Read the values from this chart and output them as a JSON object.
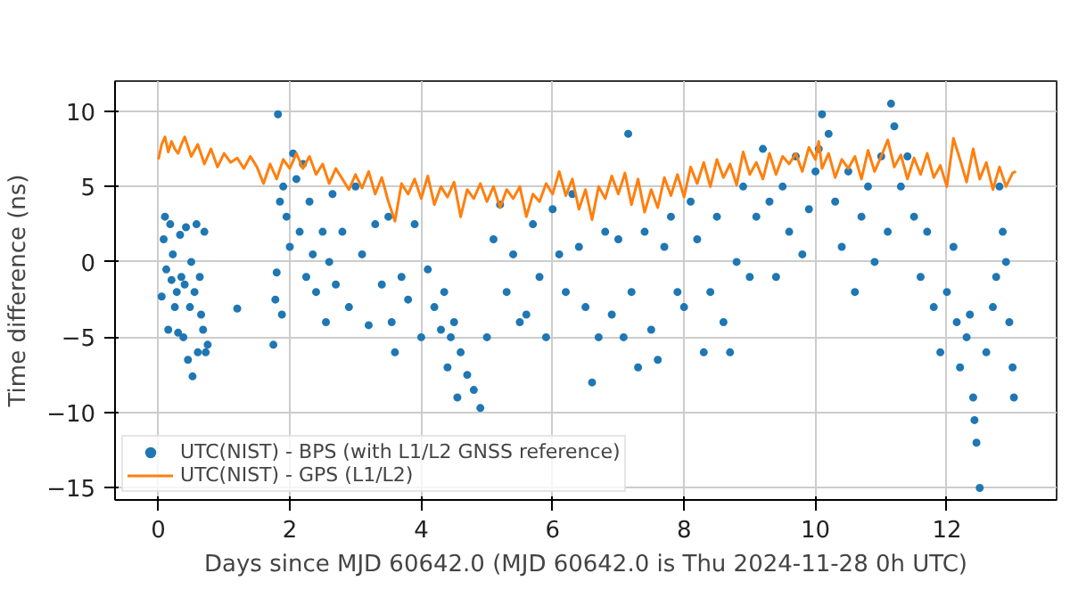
{
  "chart_data": {
    "type": "scatter",
    "xlabel": "Days since MJD 60642.0 (MJD 60642.0 is Thu 2024-11-28 0h UTC)",
    "ylabel": "Time difference (ns)",
    "xlim": [
      -0.66,
      13.67
    ],
    "ylim": [
      -15.8,
      12
    ],
    "xticks": [
      0,
      2,
      4,
      6,
      8,
      10,
      12
    ],
    "yticks": [
      -15,
      -10,
      -5,
      0,
      5,
      10
    ],
    "grid": true,
    "legend": "bottom left",
    "series": [
      {
        "name": "UTC(NIST) - BPS (with L1/L2 GNSS reference)",
        "marker": "circle",
        "color": "#1f77b4",
        "x": [
          0.05,
          0.08,
          0.1,
          0.12,
          0.15,
          0.18,
          0.2,
          0.22,
          0.25,
          0.28,
          0.3,
          0.33,
          0.35,
          0.38,
          0.4,
          0.42,
          0.45,
          0.48,
          0.5,
          0.52,
          0.55,
          0.58,
          0.6,
          0.63,
          0.65,
          0.68,
          0.7,
          0.72,
          0.75,
          1.2,
          1.75,
          1.78,
          1.8,
          1.82,
          1.85,
          1.88,
          1.9,
          1.95,
          2.0,
          2.05,
          2.1,
          2.15,
          2.2,
          2.25,
          2.3,
          2.35,
          2.4,
          2.5,
          2.55,
          2.6,
          2.65,
          2.7,
          2.8,
          2.9,
          3.0,
          3.1,
          3.2,
          3.3,
          3.4,
          3.5,
          3.55,
          3.6,
          3.7,
          3.8,
          3.9,
          4.0,
          4.1,
          4.2,
          4.3,
          4.35,
          4.4,
          4.45,
          4.5,
          4.55,
          4.6,
          4.7,
          4.8,
          4.9,
          5.0,
          5.1,
          5.2,
          5.3,
          5.4,
          5.5,
          5.6,
          5.7,
          5.8,
          5.9,
          6.0,
          6.1,
          6.2,
          6.3,
          6.4,
          6.5,
          6.6,
          6.7,
          6.8,
          6.9,
          7.0,
          7.08,
          7.15,
          7.2,
          7.3,
          7.4,
          7.5,
          7.6,
          7.7,
          7.8,
          7.9,
          8.0,
          8.1,
          8.2,
          8.3,
          8.4,
          8.5,
          8.6,
          8.7,
          8.8,
          8.9,
          9.0,
          9.1,
          9.2,
          9.3,
          9.4,
          9.5,
          9.6,
          9.7,
          9.8,
          9.9,
          10.0,
          10.05,
          10.1,
          10.2,
          10.3,
          10.4,
          10.5,
          10.6,
          10.7,
          10.8,
          10.9,
          11.0,
          11.1,
          11.15,
          11.2,
          11.3,
          11.4,
          11.5,
          11.6,
          11.7,
          11.8,
          11.9,
          12.0,
          12.1,
          12.15,
          12.2,
          12.3,
          12.35,
          12.4,
          12.42,
          12.45,
          12.5,
          12.6,
          12.7,
          12.75,
          12.8,
          12.85,
          12.9,
          12.95,
          13.0,
          13.02
        ],
        "values": [
          -2.3,
          1.5,
          3,
          -0.5,
          -4.5,
          2.5,
          -1.2,
          0.5,
          -3,
          -2,
          -4.7,
          1.8,
          -1,
          -5,
          -1.5,
          2.3,
          -6.5,
          -3,
          0,
          -7.6,
          -2,
          2.5,
          -6,
          -1,
          -3.5,
          -4.5,
          2,
          -6,
          -5.5,
          -3.1,
          -5.5,
          -2.5,
          -0.7,
          9.8,
          4,
          -3.5,
          5,
          3,
          1,
          7.2,
          5.5,
          2,
          6.5,
          -1,
          4,
          0.5,
          -2,
          2,
          -4,
          0,
          4.5,
          -1.5,
          2,
          -3,
          5,
          0.5,
          -4.2,
          2.5,
          -1.5,
          3,
          -4,
          -6,
          -1,
          -2.5,
          2.5,
          -5,
          -0.5,
          -3,
          -4.5,
          -2,
          -7,
          -5,
          -4,
          -9,
          -6,
          -7.5,
          -8.5,
          -9.7,
          -5,
          1.5,
          3.8,
          -2,
          0.5,
          -4,
          -3.5,
          2.5,
          -1,
          -5,
          3.5,
          0.5,
          -2,
          4.5,
          1,
          -3,
          -8,
          -5,
          2,
          -3.5,
          1.5,
          -5,
          8.5,
          -2,
          -7,
          2,
          -4.5,
          -6.5,
          1,
          3,
          -2,
          -3,
          4,
          1.5,
          -6,
          -2,
          3,
          -4,
          -6,
          0,
          5,
          -1,
          3,
          7.5,
          4,
          -1,
          5,
          2,
          7,
          0.5,
          3.5,
          6,
          7.5,
          9.8,
          8.5,
          4,
          1,
          6,
          -2,
          3,
          5,
          0,
          7,
          2,
          10.5,
          9,
          5,
          7,
          3,
          -1,
          2,
          -3,
          -6,
          -2,
          1,
          -4,
          -7,
          -5,
          -3.5,
          -9,
          -10.5,
          -12,
          -15,
          -6,
          -3,
          -1,
          5,
          2,
          0,
          -4,
          -7,
          -9
        ]
      },
      {
        "name": "UTC(NIST) - GPS (L1/L2)",
        "type": "line",
        "line_style": "solid",
        "color": "#ff7f0e",
        "x": [
          0,
          0.05,
          0.1,
          0.15,
          0.2,
          0.25,
          0.3,
          0.35,
          0.4,
          0.5,
          0.6,
          0.7,
          0.8,
          0.9,
          1.0,
          1.1,
          1.2,
          1.3,
          1.4,
          1.5,
          1.6,
          1.7,
          1.8,
          1.9,
          2.0,
          2.1,
          2.2,
          2.3,
          2.4,
          2.5,
          2.6,
          2.7,
          2.8,
          2.9,
          3.0,
          3.1,
          3.2,
          3.3,
          3.4,
          3.5,
          3.6,
          3.7,
          3.8,
          3.9,
          4.0,
          4.1,
          4.2,
          4.3,
          4.4,
          4.5,
          4.6,
          4.7,
          4.8,
          4.9,
          5.0,
          5.1,
          5.2,
          5.3,
          5.4,
          5.5,
          5.6,
          5.7,
          5.8,
          5.9,
          6.0,
          6.1,
          6.2,
          6.3,
          6.4,
          6.5,
          6.6,
          6.7,
          6.8,
          6.9,
          7.0,
          7.1,
          7.2,
          7.3,
          7.4,
          7.5,
          7.6,
          7.7,
          7.8,
          7.9,
          8.0,
          8.1,
          8.2,
          8.3,
          8.4,
          8.5,
          8.6,
          8.7,
          8.8,
          8.9,
          9.0,
          9.1,
          9.2,
          9.3,
          9.4,
          9.5,
          9.6,
          9.7,
          9.8,
          9.9,
          10.0,
          10.05,
          10.1,
          10.2,
          10.3,
          10.4,
          10.5,
          10.6,
          10.7,
          10.8,
          10.9,
          11.0,
          11.1,
          11.2,
          11.3,
          11.4,
          11.5,
          11.6,
          11.7,
          11.8,
          11.9,
          12.0,
          12.1,
          12.2,
          12.3,
          12.4,
          12.5,
          12.6,
          12.7,
          12.8,
          12.9,
          13.0,
          13.05
        ],
        "values": [
          6.8,
          7.8,
          8.3,
          7.3,
          8,
          7.5,
          7.2,
          7.8,
          8.3,
          7,
          7.8,
          6.5,
          7.5,
          6.3,
          7.2,
          6.6,
          6.9,
          6.2,
          7,
          6.3,
          5.2,
          6.5,
          5.5,
          6.8,
          6.2,
          7.2,
          6.2,
          7,
          5.8,
          6.5,
          5.2,
          6.2,
          5.5,
          4.8,
          5.8,
          4.9,
          6,
          4.5,
          5.6,
          4,
          2.7,
          5.2,
          4.5,
          5.5,
          4.2,
          5.7,
          3.8,
          5,
          4.3,
          5.3,
          3,
          4.8,
          4.2,
          5.2,
          4,
          5,
          3.6,
          4.8,
          4.2,
          5,
          3,
          4.5,
          4,
          5.2,
          4.5,
          6,
          4.4,
          5.5,
          3.5,
          4.8,
          2.8,
          5,
          4.2,
          5.7,
          4.5,
          5.9,
          3.8,
          5.5,
          3.3,
          4.8,
          3.6,
          5.6,
          4.4,
          5.8,
          4.3,
          6.3,
          5.2,
          6.6,
          5,
          6.8,
          5.6,
          6.5,
          5.1,
          7.3,
          5.8,
          6.6,
          5.5,
          7.2,
          5.8,
          7,
          6.5,
          7.2,
          6,
          7.6,
          6.8,
          8,
          6.2,
          7.2,
          5.6,
          6.8,
          6.2,
          7,
          5.5,
          7.4,
          6,
          7,
          8.1,
          6.3,
          7.1,
          5.5,
          6.9,
          5.8,
          7.2,
          5.6,
          6.4,
          5,
          8.2,
          6.8,
          5.3,
          7.5,
          5.5,
          6.6,
          4.8,
          6.3,
          5,
          5.9,
          6.0
        ]
      }
    ]
  }
}
